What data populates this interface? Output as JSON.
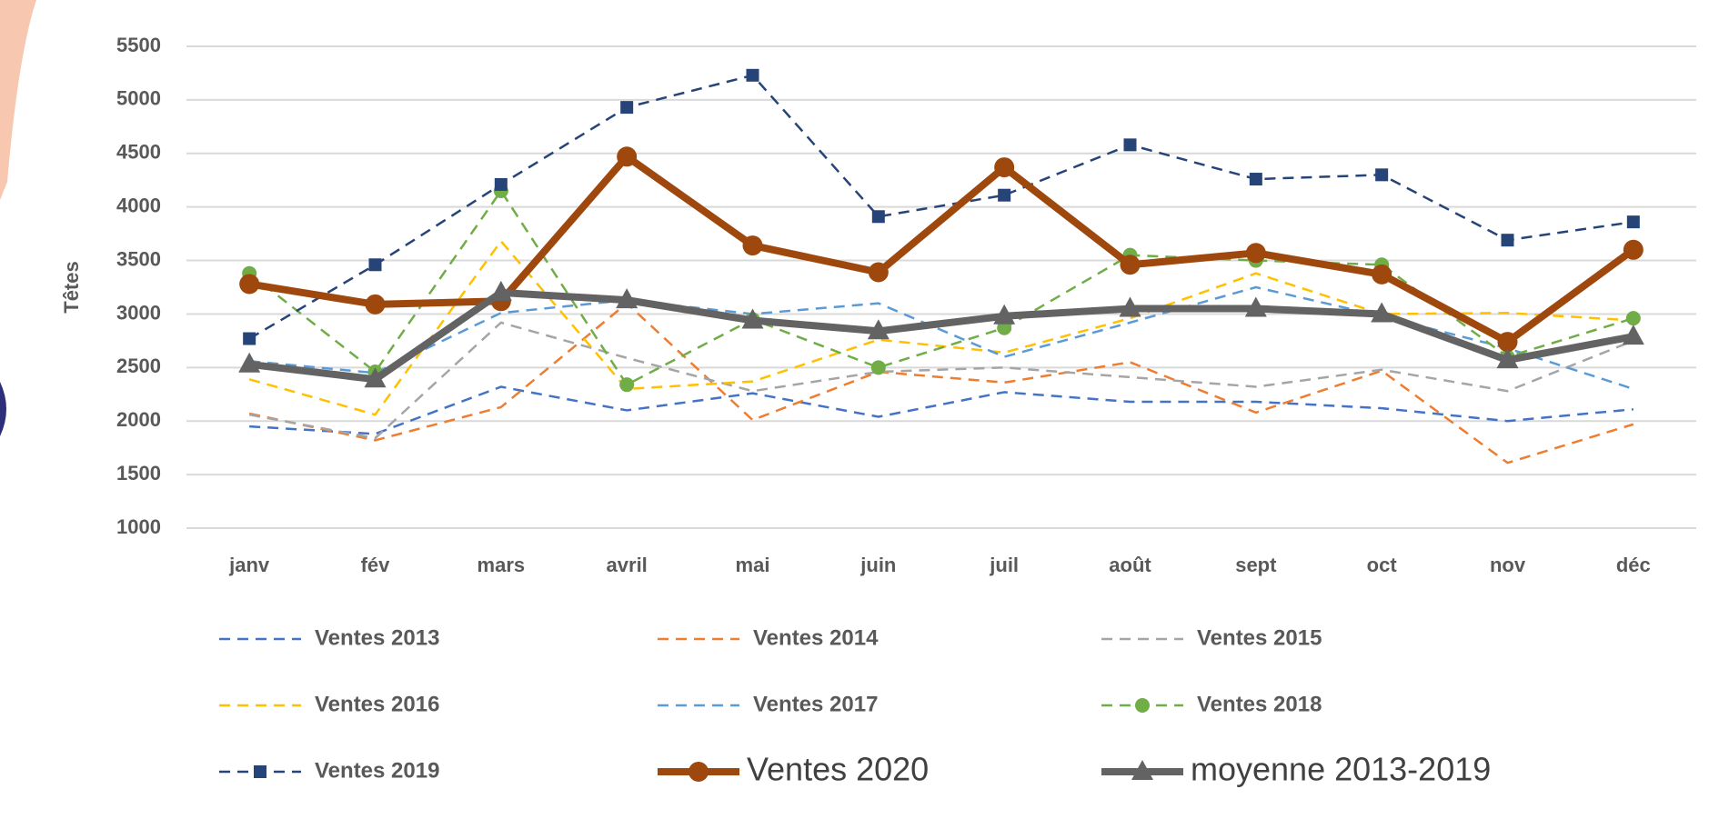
{
  "chart_data": {
    "type": "line",
    "y_label": "Têtes",
    "categories": [
      "janv",
      "fév",
      "mars",
      "avril",
      "mai",
      "juin",
      "juil",
      "août",
      "sept",
      "oct",
      "nov",
      "déc"
    ],
    "ylim": [
      1000,
      5500
    ],
    "yticks": [
      1000,
      1500,
      2000,
      2500,
      3000,
      3500,
      4000,
      4500,
      5000,
      5500
    ],
    "grid": true,
    "legend": "bottom",
    "series": [
      {
        "name": "Ventes 2013",
        "color": "#4472c4",
        "dash": true,
        "marker": "none",
        "values": [
          1950,
          1880,
          2320,
          2100,
          2260,
          2040,
          2270,
          2180,
          2180,
          2120,
          2000,
          2110
        ]
      },
      {
        "name": "Ventes 2014",
        "color": "#ed7d31",
        "dash": true,
        "marker": "none",
        "values": [
          2070,
          1820,
          2130,
          3100,
          2010,
          2460,
          2360,
          2550,
          2080,
          2470,
          1610,
          1970
        ]
      },
      {
        "name": "Ventes 2015",
        "color": "#a5a5a5",
        "dash": true,
        "marker": "none",
        "values": [
          2060,
          1840,
          2920,
          2590,
          2280,
          2460,
          2500,
          2410,
          2320,
          2480,
          2280,
          2750
        ]
      },
      {
        "name": "Ventes 2016",
        "color": "#ffc000",
        "dash": true,
        "marker": "none",
        "values": [
          2390,
          2060,
          3680,
          2300,
          2370,
          2760,
          2640,
          2960,
          3380,
          3000,
          3010,
          2940
        ]
      },
      {
        "name": "Ventes 2017",
        "color": "#5b9bd5",
        "dash": true,
        "marker": "none",
        "values": [
          2560,
          2450,
          3010,
          3130,
          3000,
          3100,
          2600,
          2920,
          3250,
          2980,
          2680,
          2300
        ]
      },
      {
        "name": "Ventes 2018",
        "color": "#70ad47",
        "dash": true,
        "marker": "circle",
        "values": [
          3380,
          2460,
          4150,
          2340,
          2950,
          2500,
          2870,
          3550,
          3500,
          3460,
          2600,
          2960
        ]
      },
      {
        "name": "Ventes 2019",
        "color": "#264478",
        "dash": true,
        "marker": "square",
        "values": [
          2770,
          3460,
          4210,
          4930,
          5230,
          3910,
          4110,
          4580,
          4260,
          4300,
          3690,
          3860
        ]
      },
      {
        "name": "Ventes 2020",
        "color": "#9e480e",
        "dash": false,
        "marker": "circle",
        "values": [
          3280,
          3090,
          3120,
          4470,
          3640,
          3390,
          4370,
          3460,
          3570,
          3370,
          2740,
          3600
        ]
      },
      {
        "name": "moyenne 2013-2019",
        "color": "#636363",
        "dash": false,
        "marker": "triangle",
        "values": [
          2530,
          2390,
          3200,
          3130,
          2940,
          2840,
          2980,
          3050,
          3050,
          3000,
          2570,
          2790
        ]
      }
    ]
  }
}
